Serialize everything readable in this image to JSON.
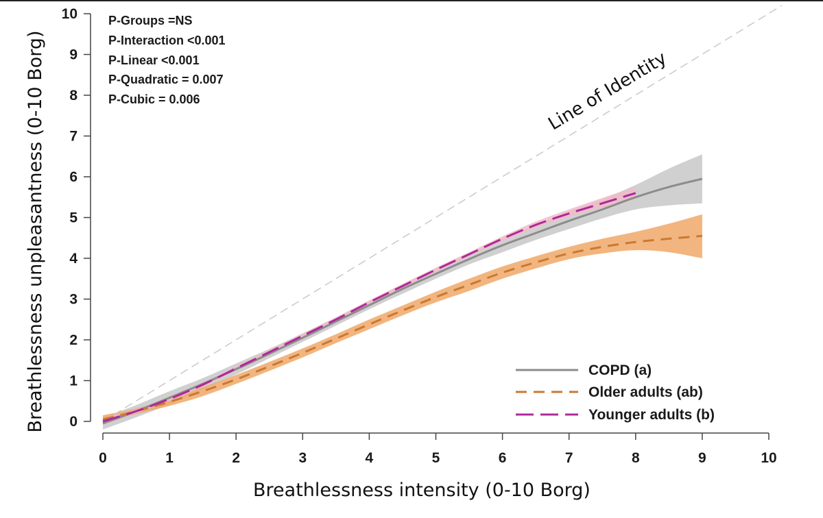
{
  "chart_data": {
    "type": "line",
    "xlabel": "Breathlessness intensity (0-10 Borg)",
    "ylabel": "Breathlessness unpleasantness (0-10 Borg)",
    "xlim": [
      0,
      10
    ],
    "ylim": [
      0,
      10
    ],
    "xticks": [
      "0",
      "1",
      "2",
      "3",
      "4",
      "5",
      "6",
      "7",
      "8",
      "9",
      "10"
    ],
    "yticks": [
      "0",
      "1",
      "2",
      "3",
      "4",
      "5",
      "6",
      "7",
      "8",
      "9",
      "10"
    ],
    "grid": false,
    "legend_position": "bottom-right",
    "annotations": [
      "P-Groups =NS",
      "P-Interaction <0.001",
      "P-Linear <0.001",
      "P-Quadratic = 0.007",
      "P-Cubic = 0.006"
    ],
    "identity_line": {
      "label": "Line of Identity",
      "x": [
        0,
        10
      ],
      "y": [
        0,
        10
      ],
      "color": "#cccccc"
    },
    "series": [
      {
        "name": "COPD (a)",
        "color": "#8c8c8c",
        "band_color": "#c8c8c8",
        "style": "solid",
        "x": [
          0,
          0.5,
          1,
          1.5,
          2,
          2.5,
          3,
          3.5,
          4,
          4.5,
          5,
          5.5,
          6,
          6.5,
          7,
          7.5,
          8,
          8.5,
          9
        ],
        "y": [
          -0.05,
          0.25,
          0.58,
          0.92,
          1.28,
          1.66,
          2.05,
          2.45,
          2.85,
          3.25,
          3.62,
          3.98,
          4.32,
          4.62,
          4.92,
          5.2,
          5.5,
          5.75,
          5.95
        ],
        "lower": [
          -0.2,
          0.1,
          0.42,
          0.78,
          1.15,
          1.55,
          1.95,
          2.35,
          2.75,
          3.13,
          3.5,
          3.85,
          4.15,
          4.45,
          4.72,
          4.98,
          5.2,
          5.3,
          5.35
        ],
        "upper": [
          0.1,
          0.4,
          0.74,
          1.06,
          1.42,
          1.78,
          2.16,
          2.55,
          2.95,
          3.37,
          3.75,
          4.12,
          4.5,
          4.82,
          5.15,
          5.45,
          5.8,
          6.2,
          6.55
        ]
      },
      {
        "name": "Older adults (ab)",
        "color": "#c87a32",
        "band_color": "#f0a868",
        "style": "dashed",
        "x": [
          0,
          0.5,
          1,
          1.5,
          2,
          2.5,
          3,
          3.5,
          4,
          4.5,
          5,
          5.5,
          6,
          6.5,
          7,
          7.5,
          8,
          8.5,
          9
        ],
        "y": [
          0.05,
          0.25,
          0.48,
          0.74,
          1.03,
          1.35,
          1.68,
          2.03,
          2.38,
          2.72,
          3.05,
          3.35,
          3.65,
          3.9,
          4.12,
          4.28,
          4.4,
          4.48,
          4.55
        ],
        "lower": [
          -0.05,
          0.18,
          0.38,
          0.62,
          0.92,
          1.24,
          1.57,
          1.92,
          2.26,
          2.6,
          2.92,
          3.2,
          3.5,
          3.75,
          3.98,
          4.12,
          4.2,
          4.15,
          4.0
        ],
        "upper": [
          0.15,
          0.32,
          0.56,
          0.84,
          1.14,
          1.46,
          1.79,
          2.14,
          2.5,
          2.84,
          3.18,
          3.5,
          3.8,
          4.05,
          4.28,
          4.48,
          4.65,
          4.85,
          5.08
        ]
      },
      {
        "name": "Younger adults (b)",
        "color": "#b0289a",
        "band_color": "#f0bcc8",
        "style": "longdash",
        "x": [
          0,
          0.5,
          1,
          1.5,
          2,
          2.5,
          3,
          3.5,
          4,
          4.5,
          5,
          5.5,
          6,
          6.5,
          7,
          7.5,
          8
        ],
        "y": [
          0.0,
          0.25,
          0.55,
          0.9,
          1.3,
          1.7,
          2.1,
          2.5,
          2.92,
          3.32,
          3.72,
          4.1,
          4.48,
          4.82,
          5.1,
          5.35,
          5.6
        ],
        "lower": [
          -0.08,
          0.2,
          0.5,
          0.85,
          1.25,
          1.65,
          2.05,
          2.45,
          2.87,
          3.27,
          3.67,
          4.05,
          4.42,
          4.75,
          5.02,
          5.25,
          5.45
        ],
        "upper": [
          0.08,
          0.3,
          0.6,
          0.95,
          1.35,
          1.75,
          2.15,
          2.55,
          2.97,
          3.37,
          3.77,
          4.15,
          4.54,
          4.9,
          5.2,
          5.48,
          5.75
        ]
      }
    ]
  }
}
